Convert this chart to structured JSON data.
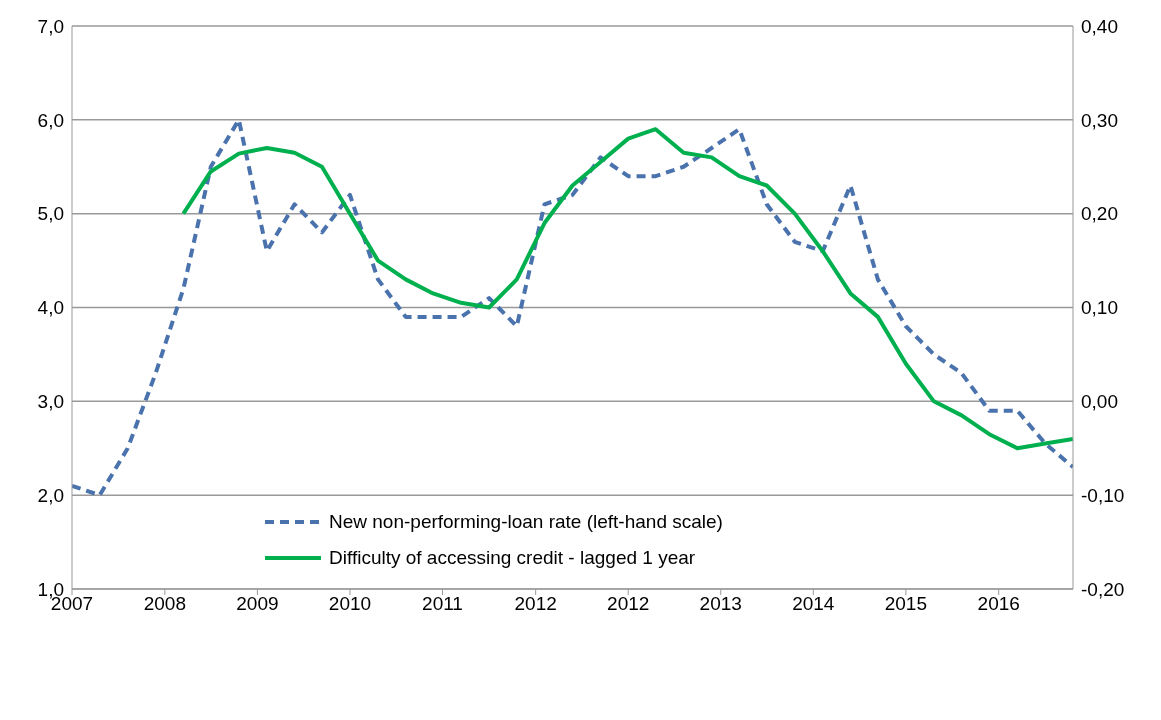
{
  "chart_data": {
    "type": "line",
    "x": [
      "2007-12",
      "2008-03",
      "2008-06",
      "2008-09",
      "2008-12",
      "2009-03",
      "2009-06",
      "2009-09",
      "2009-12",
      "2010-03",
      "2010-06",
      "2010-09",
      "2010-12",
      "2011-03",
      "2011-06",
      "2011-09",
      "2011-12",
      "2012-03",
      "2012-06",
      "2012-09",
      "2012-12",
      "2013-03",
      "2013-06",
      "2013-09",
      "2013-12",
      "2014-03",
      "2014-06",
      "2014-09",
      "2014-12",
      "2015-03",
      "2015-06",
      "2015-09",
      "2015-12",
      "2016-03",
      "2016-06",
      "2016-09",
      "2016-12"
    ],
    "series": [
      {
        "name": "New non-performing-loan rate (left-hand scale)",
        "color": "#4a72ad",
        "line_style": "dashed",
        "axis": "y",
        "values": [
          2.1,
          2.0,
          2.5,
          3.3,
          4.2,
          5.5,
          6.0,
          4.6,
          5.1,
          4.8,
          5.2,
          4.3,
          3.9,
          3.9,
          3.9,
          4.1,
          3.8,
          5.1,
          5.2,
          5.6,
          5.4,
          5.4,
          5.5,
          5.7,
          5.9,
          5.1,
          4.7,
          4.6,
          5.3,
          4.3,
          3.8,
          3.5,
          3.3,
          2.9,
          2.9,
          2.55,
          2.3
        ]
      },
      {
        "name": "Difficulty of accessing credit - lagged 1 year",
        "color": "#00b04f",
        "line_style": "solid",
        "axis": "y2",
        "values": [
          null,
          null,
          null,
          null,
          0.2,
          0.245,
          0.264,
          0.27,
          0.265,
          0.25,
          0.2,
          0.15,
          0.13,
          0.115,
          0.105,
          0.1,
          0.13,
          0.19,
          0.23,
          0.255,
          0.28,
          0.29,
          0.265,
          0.26,
          0.24,
          0.23,
          0.2,
          0.16,
          0.115,
          0.09,
          0.04,
          0.0,
          -0.015,
          -0.035,
          -0.05,
          -0.045,
          -0.04
        ]
      }
    ],
    "xlim": [
      "2007-12",
      "2016-12"
    ],
    "xticks": [
      {
        "value": "2007-12",
        "label": "2007"
      },
      {
        "value": "2008-10",
        "label": "2008"
      },
      {
        "value": "2009-08",
        "label": "2009"
      },
      {
        "value": "2010-06",
        "label": "2010"
      },
      {
        "value": "2011-04",
        "label": "2011"
      },
      {
        "value": "2012-02",
        "label": "2012"
      },
      {
        "value": "2012-12",
        "label": "2012"
      },
      {
        "value": "2013-10",
        "label": "2013"
      },
      {
        "value": "2014-08",
        "label": "2014"
      },
      {
        "value": "2015-06",
        "label": "2015"
      },
      {
        "value": "2016-04",
        "label": "2016"
      }
    ],
    "ylim": [
      1,
      7
    ],
    "yticks": [
      {
        "value": 1,
        "label": "1,0"
      },
      {
        "value": 2,
        "label": "2,0"
      },
      {
        "value": 3,
        "label": "3,0"
      },
      {
        "value": 4,
        "label": "4,0"
      },
      {
        "value": 5,
        "label": "5,0"
      },
      {
        "value": 6,
        "label": "6,0"
      },
      {
        "value": 7,
        "label": "7,0"
      }
    ],
    "y2lim": [
      -0.2,
      0.4
    ],
    "y2ticks": [
      {
        "value": -0.2,
        "label": "-0,20"
      },
      {
        "value": -0.1,
        "label": "-0,10"
      },
      {
        "value": 0,
        "label": "0,00"
      },
      {
        "value": 0.1,
        "label": "0,10"
      },
      {
        "value": 0.2,
        "label": "0,20"
      },
      {
        "value": 0.3,
        "label": "0,30"
      },
      {
        "value": 0.4,
        "label": "0,40"
      }
    ],
    "grid": "y",
    "legend": "bottom",
    "marker": "none"
  }
}
